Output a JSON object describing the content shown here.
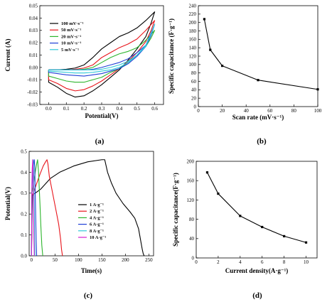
{
  "chart_data": [
    {
      "panel": "a",
      "type": "line",
      "caption": "(a)",
      "xlabel": "Potential(V)",
      "ylabel": "Current (A)",
      "xlim": [
        -0.05,
        0.65
      ],
      "ylim": [
        -0.03,
        0.05
      ],
      "xticks": [
        0.0,
        0.1,
        0.2,
        0.3,
        0.4,
        0.5,
        0.6
      ],
      "yticks": [
        -0.03,
        -0.02,
        -0.01,
        0.0,
        0.01,
        0.02,
        0.03,
        0.04,
        0.05
      ],
      "xtick_labels": [
        "0.0",
        "0.1",
        "0.2",
        "0.3",
        "0.4",
        "0.5",
        "0.6"
      ],
      "ytick_labels": [
        "-0.03",
        "-0.02",
        "-0.01",
        "0.00",
        "0.01",
        "0.02",
        "0.03",
        "0.04",
        "0.05"
      ],
      "legend_position": "top-left",
      "series": [
        {
          "name": "100  mV·s⁻¹",
          "color": "#000000",
          "x": [
            0.0,
            0.05,
            0.1,
            0.15,
            0.2,
            0.25,
            0.3,
            0.35,
            0.4,
            0.45,
            0.5,
            0.55,
            0.6,
            0.58,
            0.55,
            0.5,
            0.45,
            0.4,
            0.35,
            0.3,
            0.25,
            0.2,
            0.15,
            0.1,
            0.05,
            0.0,
            0.0
          ],
          "y": [
            -0.002,
            -0.002,
            -0.0015,
            -0.0005,
            0.002,
            0.008,
            0.015,
            0.02,
            0.025,
            0.028,
            0.032,
            0.038,
            0.045,
            0.036,
            0.025,
            0.015,
            0.006,
            -0.002,
            -0.008,
            -0.014,
            -0.019,
            -0.023,
            -0.024,
            -0.021,
            -0.016,
            -0.012,
            -0.002
          ]
        },
        {
          "name": "50  mV·s⁻¹",
          "color": "#e8141b",
          "x": [
            0.0,
            0.05,
            0.1,
            0.15,
            0.2,
            0.25,
            0.3,
            0.35,
            0.4,
            0.45,
            0.5,
            0.55,
            0.6,
            0.58,
            0.55,
            0.5,
            0.45,
            0.4,
            0.35,
            0.3,
            0.25,
            0.2,
            0.15,
            0.1,
            0.05,
            0.0,
            0.0
          ],
          "y": [
            -0.002,
            -0.002,
            -0.002,
            -0.0015,
            -0.0005,
            0.002,
            0.008,
            0.012,
            0.016,
            0.019,
            0.023,
            0.03,
            0.038,
            0.03,
            0.021,
            0.012,
            0.005,
            -0.001,
            -0.006,
            -0.011,
            -0.015,
            -0.018,
            -0.019,
            -0.017,
            -0.013,
            -0.01,
            -0.002
          ]
        },
        {
          "name": "20  mV·s⁻¹",
          "color": "#2db52d",
          "x": [
            0.0,
            0.05,
            0.1,
            0.15,
            0.2,
            0.25,
            0.3,
            0.35,
            0.4,
            0.45,
            0.5,
            0.55,
            0.6,
            0.58,
            0.55,
            0.5,
            0.45,
            0.4,
            0.35,
            0.3,
            0.25,
            0.2,
            0.15,
            0.1,
            0.05,
            0.0,
            0.0
          ],
          "y": [
            -0.002,
            -0.002,
            -0.002,
            -0.002,
            -0.0015,
            0.0,
            0.004,
            0.008,
            0.011,
            0.013,
            0.016,
            0.022,
            0.03,
            0.024,
            0.017,
            0.01,
            0.004,
            -0.001,
            -0.004,
            -0.008,
            -0.01,
            -0.012,
            -0.012,
            -0.011,
            -0.009,
            -0.007,
            -0.002
          ]
        },
        {
          "name": "10  mV·s⁻¹",
          "color": "#1f3fd6",
          "x": [
            0.0,
            0.05,
            0.1,
            0.15,
            0.2,
            0.25,
            0.3,
            0.35,
            0.4,
            0.45,
            0.5,
            0.55,
            0.6,
            0.58,
            0.55,
            0.5,
            0.45,
            0.4,
            0.35,
            0.3,
            0.25,
            0.2,
            0.15,
            0.1,
            0.05,
            0.0,
            0.0
          ],
          "y": [
            -0.002,
            -0.002,
            -0.002,
            -0.002,
            -0.002,
            -0.0015,
            0.0,
            0.002,
            0.004,
            0.007,
            0.012,
            0.018,
            0.035,
            0.026,
            0.017,
            0.009,
            0.003,
            -0.001,
            -0.003,
            -0.005,
            -0.006,
            -0.007,
            -0.0065,
            -0.006,
            -0.005,
            -0.004,
            -0.002
          ]
        },
        {
          "name": "5  mV·s⁻¹",
          "color": "#2ec8d8",
          "x": [
            0.0,
            0.05,
            0.1,
            0.15,
            0.2,
            0.25,
            0.3,
            0.35,
            0.4,
            0.45,
            0.5,
            0.55,
            0.6,
            0.58,
            0.55,
            0.5,
            0.45,
            0.4,
            0.35,
            0.3,
            0.25,
            0.2,
            0.15,
            0.1,
            0.05,
            0.0,
            0.0
          ],
          "y": [
            -0.002,
            -0.002,
            -0.002,
            -0.002,
            -0.002,
            -0.002,
            -0.0015,
            0.0,
            0.002,
            0.005,
            0.01,
            0.017,
            0.035,
            0.027,
            0.018,
            0.01,
            0.004,
            0.0,
            -0.002,
            -0.003,
            -0.004,
            -0.0045,
            -0.0045,
            -0.004,
            -0.0035,
            -0.003,
            -0.002
          ]
        }
      ]
    },
    {
      "panel": "b",
      "type": "line",
      "caption": "(b)",
      "xlabel": "Scan rate (mV·s⁻¹)",
      "ylabel": "Specific capacitance (F·g⁻¹)",
      "xlim": [
        0,
        100
      ],
      "ylim": [
        0,
        240
      ],
      "xticks": [
        0,
        20,
        40,
        60,
        80,
        100
      ],
      "yticks": [
        0,
        20,
        40,
        60,
        80,
        100,
        120,
        140,
        160,
        180,
        200,
        220,
        240
      ],
      "xtick_labels": [
        "0",
        "20",
        "40",
        "60",
        "80",
        "100"
      ],
      "ytick_labels": [
        "0",
        "20",
        "40",
        "60",
        "80",
        "100",
        "120",
        "140",
        "160",
        "180",
        "200",
        "220",
        "240"
      ],
      "series": [
        {
          "color": "#000000",
          "x": [
            5,
            10,
            20,
            50,
            100
          ],
          "y": [
            208,
            135,
            97,
            63,
            41
          ]
        }
      ]
    },
    {
      "panel": "c",
      "type": "line",
      "caption": "(c)",
      "xlabel": "Time(s)",
      "ylabel": "Potential(V)",
      "xlim": [
        -5,
        260
      ],
      "ylim": [
        0.0,
        0.5
      ],
      "xticks": [
        0,
        50,
        100,
        150,
        200,
        250
      ],
      "yticks": [
        0.0,
        0.1,
        0.2,
        0.3,
        0.4,
        0.5
      ],
      "xtick_labels": [
        "0",
        "50",
        "100",
        "150",
        "200",
        "250"
      ],
      "ytick_labels": [
        "0.0",
        "0.1",
        "0.2",
        "0.3",
        "0.4",
        "0.5"
      ],
      "legend_position": "right",
      "series": [
        {
          "name": "1  A·g⁻¹",
          "color": "#000000",
          "x": [
            0,
            2,
            8,
            20,
            40,
            60,
            90,
            120,
            150,
            156,
            158,
            162,
            170,
            180,
            195,
            210,
            220,
            228,
            232,
            236,
            238,
            240
          ],
          "y": [
            0.0,
            0.29,
            0.3,
            0.32,
            0.37,
            0.4,
            0.43,
            0.45,
            0.46,
            0.46,
            0.44,
            0.4,
            0.35,
            0.3,
            0.25,
            0.21,
            0.18,
            0.13,
            0.08,
            0.03,
            0.01,
            0.0
          ]
        },
        {
          "name": "2  A·g⁻¹",
          "color": "#e8141b",
          "x": [
            0,
            1,
            4,
            10,
            18,
            25,
            30,
            33,
            35,
            38,
            45,
            52,
            58,
            62,
            64,
            66
          ],
          "y": [
            0.0,
            0.29,
            0.3,
            0.34,
            0.39,
            0.43,
            0.45,
            0.46,
            0.44,
            0.38,
            0.3,
            0.22,
            0.15,
            0.08,
            0.03,
            0.0
          ]
        },
        {
          "name": "4  A·g⁻¹",
          "color": "#2db52d",
          "x": [
            0,
            1,
            4,
            8,
            11,
            13,
            15,
            18,
            20,
            22,
            24
          ],
          "y": [
            0.0,
            0.3,
            0.34,
            0.4,
            0.44,
            0.46,
            0.4,
            0.25,
            0.14,
            0.05,
            0.0
          ]
        },
        {
          "name": "6  A·g⁻¹",
          "color": "#1f3fd6",
          "x": [
            0,
            1,
            3,
            5,
            6,
            7,
            8,
            9,
            10,
            11
          ],
          "y": [
            0.0,
            0.32,
            0.4,
            0.45,
            0.46,
            0.42,
            0.3,
            0.18,
            0.07,
            0.0
          ]
        },
        {
          "name": "8  A·g⁻¹",
          "color": "#2ec8d8",
          "x": [
            0,
            1,
            2,
            3.5,
            4.5,
            5.5,
            6.5,
            7.5
          ],
          "y": [
            0.0,
            0.33,
            0.42,
            0.46,
            0.42,
            0.28,
            0.1,
            0.0
          ]
        },
        {
          "name": "10  A·g⁻¹",
          "color": "#d61fd0",
          "x": [
            0,
            0.8,
            1.6,
            2.6,
            3.5,
            4.3,
            5.2,
            6
          ],
          "y": [
            0.0,
            0.34,
            0.42,
            0.46,
            0.4,
            0.25,
            0.08,
            0.0
          ]
        }
      ]
    },
    {
      "panel": "d",
      "type": "line",
      "caption": "(d)",
      "xlabel": "Current density(A·g⁻¹)",
      "ylabel": "Specific capacitance(F·g⁻¹)",
      "xlim": [
        0,
        11
      ],
      "ylim": [
        0,
        200
      ],
      "xticks": [
        0,
        2,
        4,
        6,
        8,
        10
      ],
      "yticks": [
        0,
        40,
        80,
        120,
        160,
        200
      ],
      "xtick_labels": [
        "0",
        "2",
        "4",
        "6",
        "8",
        "10"
      ],
      "ytick_labels": [
        "0",
        "40",
        "80",
        "120",
        "160",
        "200"
      ],
      "series": [
        {
          "color": "#000000",
          "x": [
            1,
            2,
            4,
            6,
            8,
            10
          ],
          "y": [
            177,
            133,
            87,
            64,
            45,
            32
          ]
        }
      ]
    }
  ]
}
